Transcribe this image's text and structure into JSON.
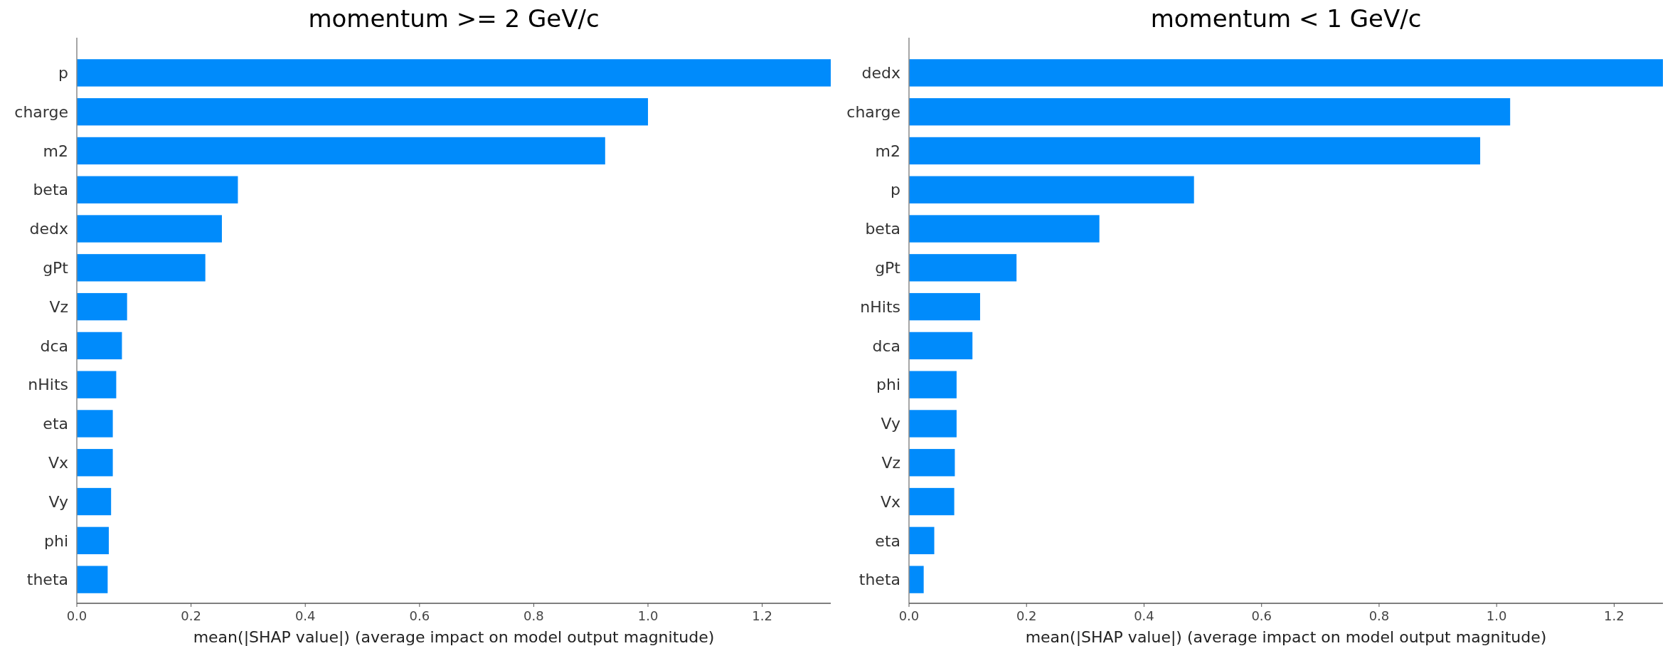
{
  "chart_data": [
    {
      "type": "bar",
      "orientation": "horizontal",
      "title": "momentum >= 2 GeV/c",
      "xlabel": "mean(|SHAP value|) (average impact on model output magnitude)",
      "categories": [
        "p",
        "charge",
        "m2",
        "beta",
        "dedx",
        "gPt",
        "Vz",
        "dca",
        "nHits",
        "eta",
        "Vx",
        "Vy",
        "phi",
        "theta"
      ],
      "values": [
        1.32,
        1.0,
        0.925,
        0.282,
        0.254,
        0.225,
        0.088,
        0.079,
        0.069,
        0.063,
        0.063,
        0.06,
        0.056,
        0.054
      ],
      "color": "#008bfb",
      "xlim": [
        0,
        1.32
      ],
      "xticks": [
        {
          "value": 0,
          "label": "0.0"
        },
        {
          "value": 0.2,
          "label": "0.2"
        },
        {
          "value": 0.4,
          "label": "0.4"
        },
        {
          "value": 0.6,
          "label": "0.6"
        },
        {
          "value": 0.8,
          "label": "0.8"
        },
        {
          "value": 1,
          "label": "1.0"
        },
        {
          "value": 1.2,
          "label": "1.2"
        }
      ],
      "grid": false
    },
    {
      "type": "bar",
      "orientation": "horizontal",
      "title": "momentum < 1 GeV/c",
      "xlabel": "mean(|SHAP value|) (average impact on model output magnitude)",
      "categories": [
        "dedx",
        "charge",
        "m2",
        "p",
        "beta",
        "gPt",
        "nHits",
        "dca",
        "phi",
        "Vy",
        "Vz",
        "Vx",
        "eta",
        "theta"
      ],
      "values": [
        1.283,
        1.023,
        0.972,
        0.485,
        0.324,
        0.183,
        0.121,
        0.108,
        0.081,
        0.081,
        0.078,
        0.077,
        0.043,
        0.025
      ],
      "color": "#008bfb",
      "xlim": [
        0,
        1.283
      ],
      "xticks": [
        {
          "value": 0,
          "label": "0.0"
        },
        {
          "value": 0.2,
          "label": "0.2"
        },
        {
          "value": 0.4,
          "label": "0.4"
        },
        {
          "value": 0.6,
          "label": "0.6"
        },
        {
          "value": 0.8,
          "label": "0.8"
        },
        {
          "value": 1,
          "label": "1.0"
        },
        {
          "value": 1.2,
          "label": "1.2"
        }
      ],
      "grid": false
    }
  ]
}
